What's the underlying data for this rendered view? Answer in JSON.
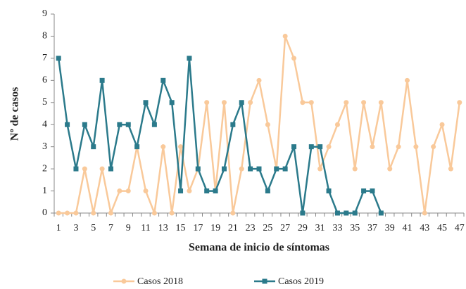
{
  "chart_data": {
    "type": "line",
    "x_label": "Semana de inicio de síntomas",
    "y_label": "Nº de casos",
    "categories": [
      "1",
      null,
      "3",
      null,
      "5",
      null,
      "7",
      null,
      "9",
      null,
      "11",
      null,
      "13",
      null,
      "15",
      null,
      "17",
      null,
      "19",
      null,
      "21",
      null,
      "23",
      null,
      "25",
      null,
      "27",
      null,
      "29",
      null,
      "31",
      null,
      "33",
      null,
      "35",
      null,
      "37",
      null,
      "39",
      null,
      "41",
      null,
      "43",
      null,
      "45",
      null,
      "47"
    ],
    "series": [
      {
        "name": "Casos 2018",
        "color": "#f9c99a",
        "marker": "circle",
        "values": [
          0,
          0,
          0,
          2,
          0,
          2,
          0,
          1,
          1,
          3,
          1,
          0,
          3,
          0,
          3,
          1,
          2,
          5,
          1,
          5,
          0,
          2,
          5,
          6,
          4,
          2,
          8,
          7,
          5,
          5,
          2,
          3,
          4,
          5,
          2,
          5,
          3,
          5,
          2,
          3,
          6,
          3,
          0,
          3,
          4,
          2,
          5
        ]
      },
      {
        "name": "Casos 2019",
        "color": "#2b7a8b",
        "marker": "square",
        "values": [
          7,
          4,
          2,
          4,
          3,
          6,
          2,
          4,
          4,
          3,
          5,
          4,
          6,
          5,
          1,
          7,
          2,
          1,
          1,
          2,
          4,
          5,
          2,
          2,
          1,
          2,
          2,
          3,
          0,
          3,
          3,
          1,
          0,
          0,
          0,
          1,
          1,
          0,
          null,
          null,
          null,
          null,
          null,
          null,
          null,
          null,
          null
        ]
      }
    ],
    "ylim": [
      0,
      9
    ],
    "yticks": [
      0,
      1,
      2,
      3,
      4,
      5,
      6,
      7,
      8,
      9
    ],
    "legend": "bottom"
  }
}
